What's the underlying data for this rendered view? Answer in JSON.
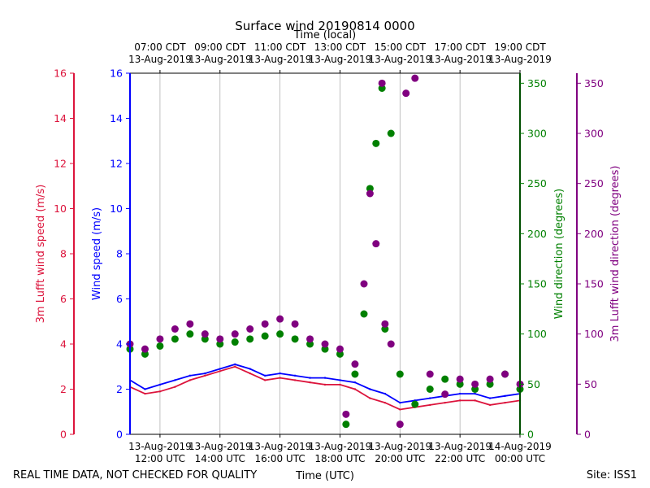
{
  "chart_data": {
    "type": "scatter",
    "title": "Surface wind 20190814 0000",
    "top_axis_label": "Time (local)",
    "xlabel": "Time (UTC)",
    "footer_left": "REAL TIME DATA, NOT CHECKED FOR QUALITY",
    "footer_right": "Site: ISS1",
    "x_range_utc_hours": [
      11.0,
      24.0
    ],
    "bottom_ticks": [
      {
        "h": 12,
        "l1": "13-Aug-2019",
        "l2": "12:00 UTC"
      },
      {
        "h": 14,
        "l1": "13-Aug-2019",
        "l2": "14:00 UTC"
      },
      {
        "h": 16,
        "l1": "13-Aug-2019",
        "l2": "16:00 UTC"
      },
      {
        "h": 18,
        "l1": "13-Aug-2019",
        "l2": "18:00 UTC"
      },
      {
        "h": 20,
        "l1": "13-Aug-2019",
        "l2": "20:00 UTC"
      },
      {
        "h": 22,
        "l1": "13-Aug-2019",
        "l2": "22:00 UTC"
      },
      {
        "h": 24,
        "l1": "14-Aug-2019",
        "l2": "00:00 UTC"
      }
    ],
    "top_ticks": [
      {
        "h": 12,
        "l1": "07:00 CDT",
        "l2": "13-Aug-2019"
      },
      {
        "h": 14,
        "l1": "09:00 CDT",
        "l2": "13-Aug-2019"
      },
      {
        "h": 16,
        "l1": "11:00 CDT",
        "l2": "13-Aug-2019"
      },
      {
        "h": 18,
        "l1": "13:00 CDT",
        "l2": "13-Aug-2019"
      },
      {
        "h": 20,
        "l1": "15:00 CDT",
        "l2": "13-Aug-2019"
      },
      {
        "h": 22,
        "l1": "17:00 CDT",
        "l2": "13-Aug-2019"
      },
      {
        "h": 24,
        "l1": "19:00 CDT",
        "l2": "13-Aug-2019"
      }
    ],
    "axes": {
      "lufft_speed": {
        "label": "3m Lufft wind speed (m/s)",
        "color": "#dc143c",
        "ylim": [
          0,
          16
        ],
        "ticks": [
          "0",
          "2",
          "4",
          "6",
          "8",
          "10",
          "12",
          "14",
          "16"
        ]
      },
      "wind_speed": {
        "label": "Wind speed (m/s)",
        "color": "#0000ff",
        "ylim": [
          0,
          16
        ],
        "ticks": [
          "0",
          "2",
          "4",
          "6",
          "8",
          "10",
          "12",
          "14",
          "16"
        ]
      },
      "wind_dir": {
        "label": "Wind direction (degrees)",
        "color": "#008000",
        "ylim": [
          0,
          360
        ],
        "ticks": [
          "0",
          "50",
          "100",
          "150",
          "200",
          "250",
          "300",
          "350"
        ]
      },
      "lufft_dir": {
        "label": "3m Lufft wind direction (degrees)",
        "color": "#800080",
        "ylim": [
          0,
          360
        ],
        "ticks": [
          "0",
          "50",
          "100",
          "150",
          "200",
          "250",
          "300",
          "350"
        ]
      }
    },
    "series": [
      {
        "name": "Wind speed",
        "axis": "wind_speed",
        "style": "line",
        "color": "#0000ff",
        "x": [
          11.0,
          11.5,
          12.0,
          12.5,
          13.0,
          13.5,
          14.0,
          14.5,
          15.0,
          15.5,
          16.0,
          16.5,
          17.0,
          17.5,
          18.0,
          18.5,
          19.0,
          19.5,
          20.0,
          20.5,
          21.0,
          21.5,
          22.0,
          22.5,
          23.0,
          23.5,
          24.0
        ],
        "y": [
          2.4,
          2.0,
          2.2,
          2.4,
          2.6,
          2.7,
          2.9,
          3.1,
          2.9,
          2.6,
          2.7,
          2.6,
          2.5,
          2.5,
          2.4,
          2.3,
          2.0,
          1.8,
          1.4,
          1.5,
          1.6,
          1.7,
          1.8,
          1.8,
          1.6,
          1.7,
          1.8
        ]
      },
      {
        "name": "3m Lufft wind speed",
        "axis": "lufft_speed",
        "style": "line",
        "color": "#dc143c",
        "x": [
          11.0,
          11.5,
          12.0,
          12.5,
          13.0,
          13.5,
          14.0,
          14.5,
          15.0,
          15.5,
          16.0,
          16.5,
          17.0,
          17.5,
          18.0,
          18.5,
          19.0,
          19.5,
          20.0,
          20.5,
          21.0,
          21.5,
          22.0,
          22.5,
          23.0,
          23.5,
          24.0
        ],
        "y": [
          2.1,
          1.8,
          1.9,
          2.1,
          2.4,
          2.6,
          2.8,
          3.0,
          2.7,
          2.4,
          2.5,
          2.4,
          2.3,
          2.2,
          2.2,
          2.0,
          1.6,
          1.4,
          1.1,
          1.2,
          1.3,
          1.4,
          1.5,
          1.5,
          1.3,
          1.4,
          1.5
        ]
      },
      {
        "name": "Wind direction",
        "axis": "wind_dir",
        "style": "scatter",
        "color": "#008000",
        "x": [
          11.0,
          11.5,
          12.0,
          12.5,
          13.0,
          13.5,
          14.0,
          14.5,
          15.0,
          15.5,
          16.0,
          16.5,
          17.0,
          17.5,
          18.0,
          18.2,
          18.5,
          18.8,
          19.0,
          19.2,
          19.4,
          19.5,
          19.7,
          20.0,
          20.5,
          21.0,
          21.5,
          22.0,
          22.5,
          23.0,
          23.5,
          24.0
        ],
        "y": [
          85,
          80,
          88,
          95,
          100,
          95,
          90,
          92,
          95,
          98,
          100,
          95,
          90,
          85,
          80,
          10,
          60,
          120,
          245,
          290,
          345,
          105,
          300,
          60,
          30,
          45,
          55,
          50,
          45,
          50,
          60,
          45
        ]
      },
      {
        "name": "3m Lufft wind direction",
        "axis": "lufft_dir",
        "style": "scatter",
        "color": "#800080",
        "x": [
          11.0,
          11.5,
          12.0,
          12.5,
          13.0,
          13.5,
          14.0,
          14.5,
          15.0,
          15.5,
          16.0,
          16.5,
          17.0,
          17.5,
          18.0,
          18.2,
          18.5,
          18.8,
          19.0,
          19.2,
          19.4,
          19.5,
          19.7,
          20.0,
          20.2,
          20.5,
          21.0,
          21.5,
          22.0,
          22.5,
          23.0,
          23.5,
          24.0
        ],
        "y": [
          90,
          85,
          95,
          105,
          110,
          100,
          95,
          100,
          105,
          110,
          115,
          110,
          95,
          90,
          85,
          20,
          70,
          150,
          240,
          190,
          350,
          110,
          90,
          10,
          340,
          355,
          60,
          40,
          55,
          50,
          55,
          60,
          50
        ]
      }
    ]
  }
}
